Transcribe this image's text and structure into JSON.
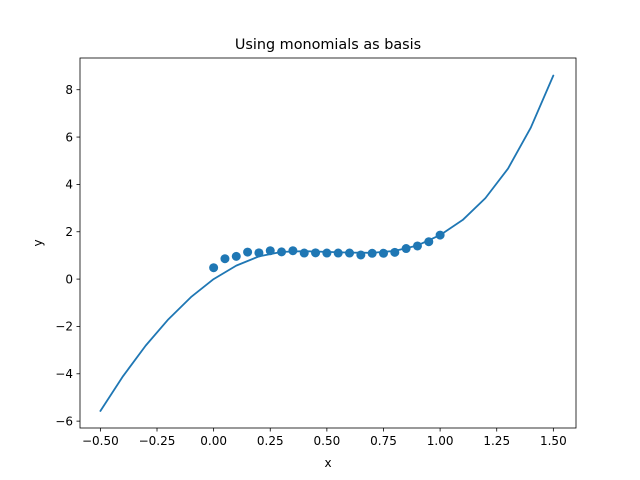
{
  "chart_data": {
    "type": "scatter",
    "title": "Using monomials as basis",
    "xlabel": "x",
    "ylabel": "y",
    "xlim": [
      -0.59,
      1.6
    ],
    "ylim": [
      -6.29,
      9.34
    ],
    "xticks": [
      -0.5,
      -0.25,
      0.0,
      0.25,
      0.5,
      0.75,
      1.0,
      1.25,
      1.5
    ],
    "xtick_labels": [
      "−0.50",
      "−0.25",
      "0.00",
      "0.25",
      "0.50",
      "0.75",
      "1.00",
      "1.25",
      "1.50"
    ],
    "yticks": [
      -6,
      -4,
      -2,
      0,
      2,
      4,
      6,
      8
    ],
    "ytick_labels": [
      "−6",
      "−4",
      "−2",
      "0",
      "2",
      "4",
      "6",
      "8"
    ],
    "grid": false,
    "series": [
      {
        "kind": "scatter",
        "color": "#1f77b4",
        "points": [
          [
            0.0,
            0.48
          ],
          [
            0.05,
            0.86
          ],
          [
            0.1,
            0.96
          ],
          [
            0.15,
            1.14
          ],
          [
            0.2,
            1.11
          ],
          [
            0.25,
            1.2
          ],
          [
            0.3,
            1.15
          ],
          [
            0.35,
            1.2
          ],
          [
            0.4,
            1.1
          ],
          [
            0.45,
            1.11
          ],
          [
            0.5,
            1.1
          ],
          [
            0.55,
            1.1
          ],
          [
            0.6,
            1.1
          ],
          [
            0.65,
            1.02
          ],
          [
            0.7,
            1.09
          ],
          [
            0.75,
            1.09
          ],
          [
            0.8,
            1.13
          ],
          [
            0.85,
            1.29
          ],
          [
            0.9,
            1.4
          ],
          [
            0.95,
            1.58
          ],
          [
            1.0,
            1.86
          ]
        ]
      },
      {
        "kind": "line",
        "color": "#1f77b4",
        "points": [
          [
            -0.5,
            -5.57
          ],
          [
            -0.4,
            -4.1
          ],
          [
            -0.3,
            -2.81
          ],
          [
            -0.2,
            -1.7
          ],
          [
            -0.1,
            -0.76
          ],
          [
            0.0,
            0.0
          ],
          [
            0.1,
            0.57
          ],
          [
            0.2,
            0.96
          ],
          [
            0.3,
            1.15
          ],
          [
            0.4,
            1.18
          ],
          [
            0.5,
            1.15
          ],
          [
            0.6,
            1.12
          ],
          [
            0.7,
            1.11
          ],
          [
            0.8,
            1.19
          ],
          [
            0.9,
            1.42
          ],
          [
            1.0,
            1.86
          ],
          [
            1.1,
            2.5
          ],
          [
            1.2,
            3.42
          ],
          [
            1.3,
            4.67
          ],
          [
            1.4,
            6.39
          ],
          [
            1.5,
            8.6
          ]
        ]
      }
    ]
  }
}
